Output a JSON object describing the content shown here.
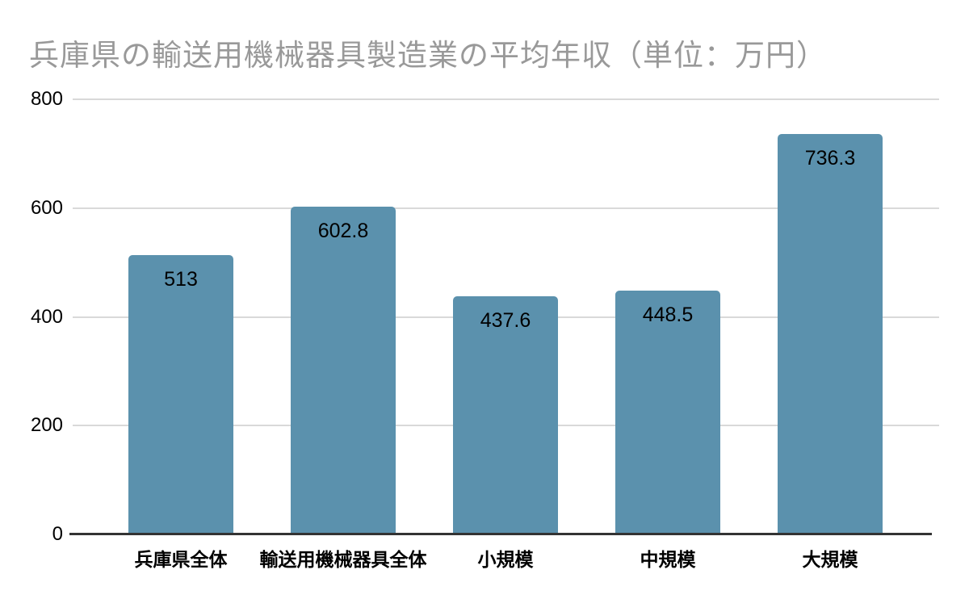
{
  "chart_data": {
    "type": "bar",
    "title": "兵庫県の輸送用機械器具製造業の平均年収（単位：万円）",
    "categories": [
      "兵庫県全体",
      "輸送用機械器具全体",
      "小規模",
      "中規模",
      "大規模"
    ],
    "values": [
      513,
      602.8,
      437.6,
      448.5,
      736.3
    ],
    "value_labels": [
      "513",
      "602.8",
      "437.6",
      "448.5",
      "736.3"
    ],
    "xlabel": "",
    "ylabel": "",
    "ylim": [
      0,
      800
    ],
    "yticks": [
      800,
      600,
      400,
      200,
      0
    ],
    "grid": true,
    "legend": false,
    "colors": {
      "bar": "#5b91ad",
      "gridline": "#d9d9d9",
      "axis_line": "#333333",
      "title": "#999999",
      "labels": "#000000",
      "background": "#ffffff"
    }
  }
}
